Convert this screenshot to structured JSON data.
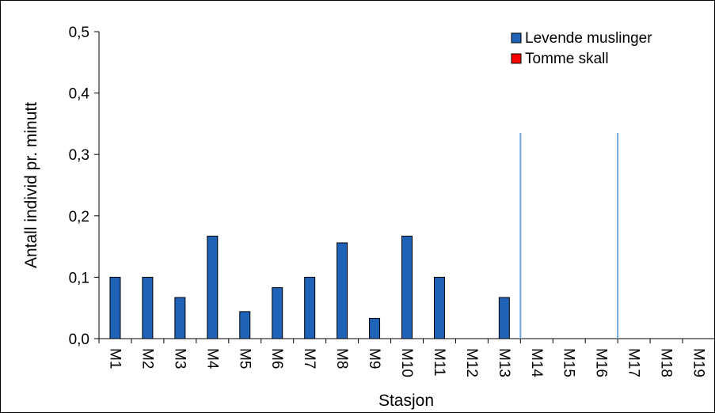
{
  "chart_data": {
    "type": "bar",
    "xlabel": "Stasjon",
    "ylabel": "Antall individ pr. minutt",
    "ylim": [
      0,
      0.5
    ],
    "y_ticks": [
      "0,0",
      "0,1",
      "0,2",
      "0,3",
      "0,4",
      "0,5"
    ],
    "y_tick_values": [
      0,
      0.1,
      0.2,
      0.3,
      0.4,
      0.5
    ],
    "categories": [
      "M1",
      "M2",
      "M3",
      "M4",
      "M5",
      "M6",
      "M7",
      "M8",
      "M9",
      "M10",
      "M11",
      "M12",
      "M13",
      "M14",
      "M15",
      "M16",
      "M17",
      "M18",
      "M19"
    ],
    "series": [
      {
        "name": "Levende muslinger",
        "color": "#1f63b8",
        "values": [
          0.1,
          0.1,
          0.067,
          0.167,
          0.044,
          0.083,
          0.1,
          0.156,
          0.033,
          0.167,
          0.1,
          0,
          0.067,
          0,
          0,
          0,
          0,
          0,
          0
        ]
      },
      {
        "name": "Tomme skall",
        "color": "#ff0000",
        "values": [
          0,
          0,
          0,
          0,
          0,
          0,
          0,
          0,
          0,
          0,
          0,
          0,
          0,
          0,
          0,
          0,
          0,
          0,
          0
        ]
      }
    ],
    "separator_after_categories": [
      "M13",
      "M16"
    ],
    "separator_color": "#6fa8dc",
    "legend_position": "top-right",
    "grid": false
  }
}
